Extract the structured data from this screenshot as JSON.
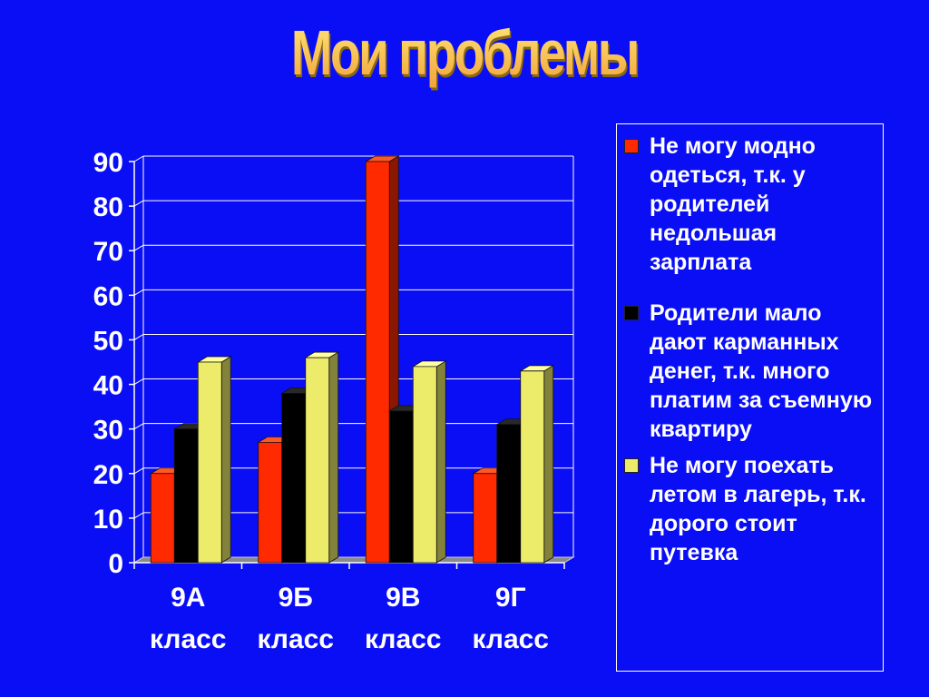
{
  "title": "Мои проблемы",
  "chart_data": {
    "type": "bar",
    "title": "Мои проблемы",
    "categories": [
      "9А класс",
      "9Б класс",
      "9В класс",
      "9Г класс"
    ],
    "category_lines": [
      [
        "9А",
        "класс"
      ],
      [
        "9Б",
        "класс"
      ],
      [
        "9В",
        "класс"
      ],
      [
        "9Г",
        "класс"
      ]
    ],
    "series": [
      {
        "name": "Не могу модно одеться, т.к. у родителей недольшая зарплата",
        "values": [
          20,
          27,
          90,
          20
        ],
        "color": "#ff2a00"
      },
      {
        "name": "Родители мало дают карманных денег, т.к. много платим за съемную квартиру",
        "values": [
          30,
          38,
          34,
          31
        ],
        "color": "#000000"
      },
      {
        "name": "Не могу поехать летом в лагерь, т.к. дорого стоит путевка",
        "values": [
          45,
          46,
          44,
          43
        ],
        "color": "#ecec6a"
      }
    ],
    "yticks": [
      "0",
      "10",
      "20",
      "30",
      "40",
      "50",
      "60",
      "70",
      "80",
      "90"
    ],
    "ylim": [
      0,
      90
    ],
    "grid": true,
    "legend_position": "right",
    "colors": {
      "background": "#0a0ef5",
      "text": "#ffffff"
    }
  }
}
